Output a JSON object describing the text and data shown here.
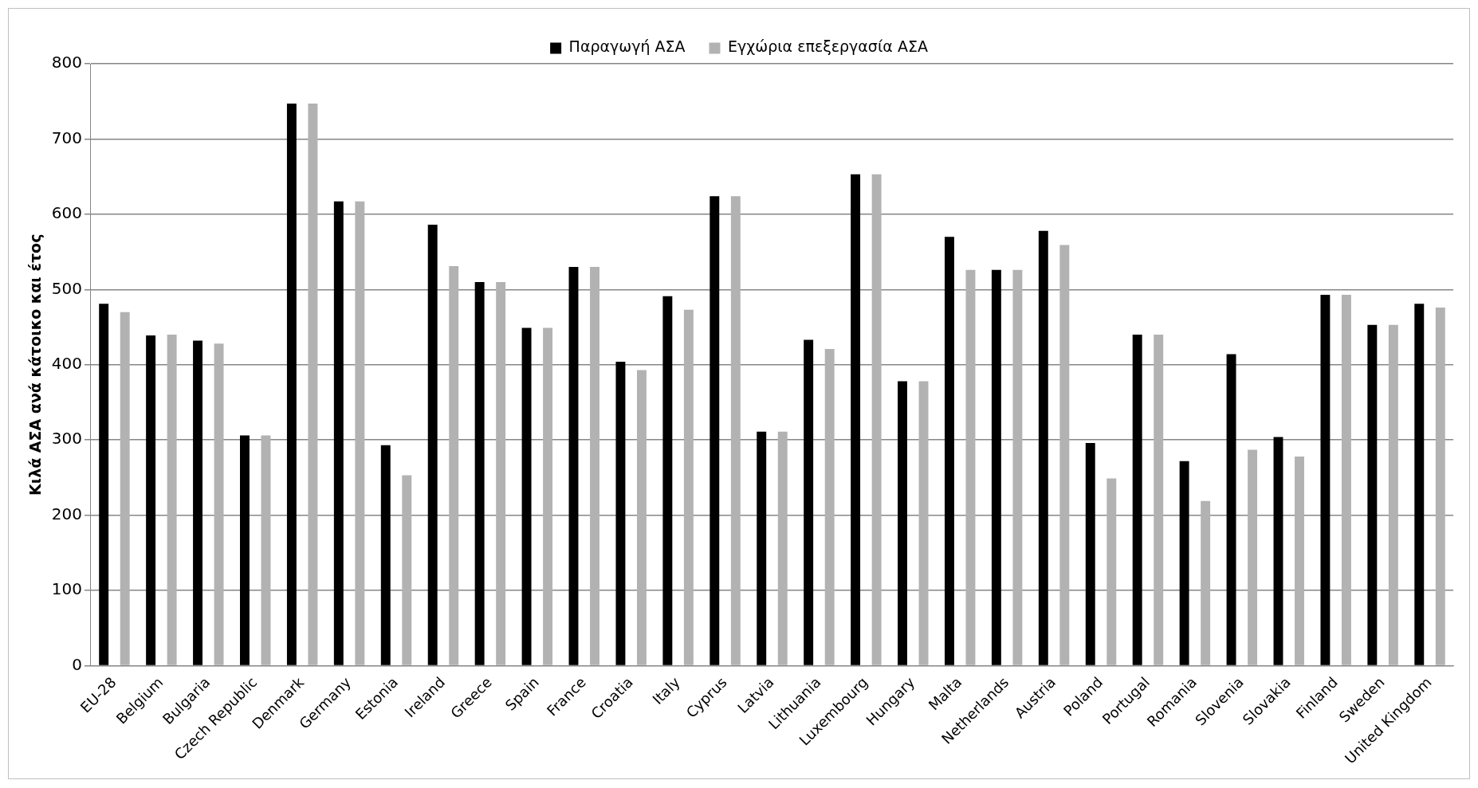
{
  "chart_data": {
    "type": "bar",
    "ylabel": "Κιλά ΑΣΑ ανά κάτοικο και έτος",
    "categories": [
      "EU-28",
      "Belgium",
      "Bulgaria",
      "Czech Republic",
      "Denmark",
      "Germany",
      "Estonia",
      "Ireland",
      "Greece",
      "Spain",
      "France",
      "Croatia",
      "Italy",
      "Cyprus",
      "Latvia",
      "Lithuania",
      "Luxembourg",
      "Hungary",
      "Malta",
      "Netherlands",
      "Austria",
      "Poland",
      "Portugal",
      "Romania",
      "Slovenia",
      "Slovakia",
      "Finland",
      "Sweden",
      "United Kingdom"
    ],
    "series": [
      {
        "name": "Παραγωγή ΑΣΑ",
        "color": "#000000",
        "values": [
          481,
          439,
          432,
          306,
          747,
          617,
          293,
          586,
          510,
          449,
          530,
          404,
          491,
          624,
          311,
          433,
          653,
          378,
          570,
          526,
          578,
          296,
          440,
          272,
          414,
          304,
          493,
          453,
          481
        ]
      },
      {
        "name": "Εγχώρια επεξεργασία ΑΣΑ",
        "color": "#b2b2b2",
        "values": [
          470,
          440,
          428,
          306,
          747,
          617,
          253,
          531,
          510,
          449,
          530,
          393,
          473,
          624,
          311,
          421,
          653,
          378,
          526,
          526,
          559,
          249,
          440,
          219,
          287,
          278,
          493,
          453,
          476
        ]
      }
    ],
    "ylim": [
      0,
      800
    ],
    "yticks": [
      0,
      100,
      200,
      300,
      400,
      500,
      600,
      700,
      800
    ],
    "grid": "y",
    "legend": "top"
  }
}
